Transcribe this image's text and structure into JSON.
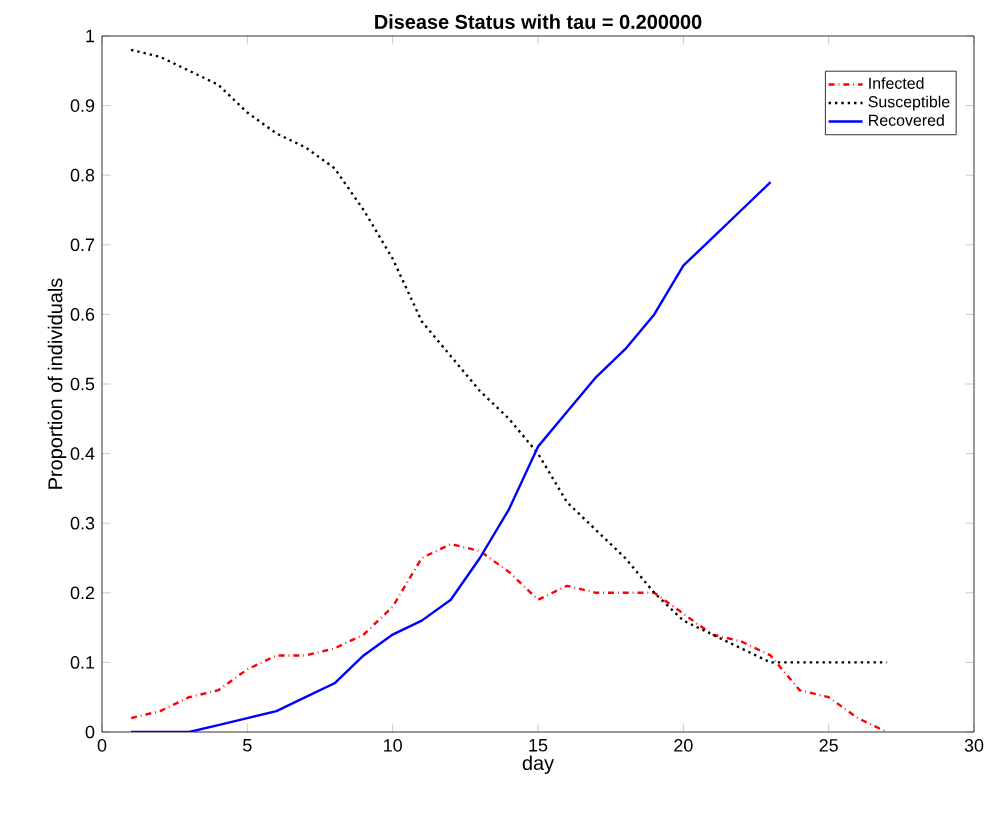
{
  "chart_data": {
    "type": "line",
    "title": "Disease Status with tau = 0.200000",
    "xlabel": "day",
    "ylabel": "Proportion of individuals",
    "x": [
      1,
      2,
      3,
      4,
      5,
      6,
      7,
      8,
      9,
      10,
      11,
      12,
      13,
      14,
      15,
      16,
      17,
      18,
      19,
      20,
      21,
      22,
      23,
      24,
      25,
      26,
      27
    ],
    "series": [
      {
        "name": "Infected",
        "color": "#ff0000",
        "line_style": "dashdot",
        "values": [
          0.02,
          0.03,
          0.05,
          0.06,
          0.09,
          0.11,
          0.11,
          0.12,
          0.14,
          0.18,
          0.25,
          0.27,
          0.26,
          0.23,
          0.19,
          0.21,
          0.2,
          0.2,
          0.2,
          0.17,
          0.14,
          0.13,
          0.11,
          0.06,
          0.05,
          0.02,
          0.0
        ]
      },
      {
        "name": "Susceptible",
        "color": "#000000",
        "line_style": "dotted",
        "values": [
          0.98,
          0.97,
          0.95,
          0.93,
          0.89,
          0.86,
          0.84,
          0.81,
          0.75,
          0.68,
          0.59,
          0.54,
          0.49,
          0.45,
          0.4,
          0.33,
          0.29,
          0.25,
          0.2,
          0.16,
          0.14,
          0.12,
          0.1,
          0.1,
          0.1,
          0.1,
          0.1
        ]
      },
      {
        "name": "Recovered",
        "color": "#0000ff",
        "line_style": "solid",
        "values": [
          0,
          0,
          0,
          0.01,
          0.02,
          0.03,
          0.05,
          0.07,
          0.11,
          0.14,
          0.16,
          0.19,
          0.25,
          0.32,
          0.41,
          0.46,
          0.51,
          0.55,
          0.6,
          0.67,
          0.71,
          0.75,
          0.79,
          null,
          null,
          null,
          null
        ]
      }
    ],
    "xlim": [
      0,
      30
    ],
    "xticks": [
      0,
      5,
      10,
      15,
      20,
      25,
      30
    ],
    "ylim": [
      0,
      1
    ],
    "yticks": [
      0,
      0.1,
      0.2,
      0.3,
      0.4,
      0.5,
      0.6,
      0.7,
      0.8,
      0.9,
      1
    ],
    "legend": "top right",
    "grid": false
  }
}
